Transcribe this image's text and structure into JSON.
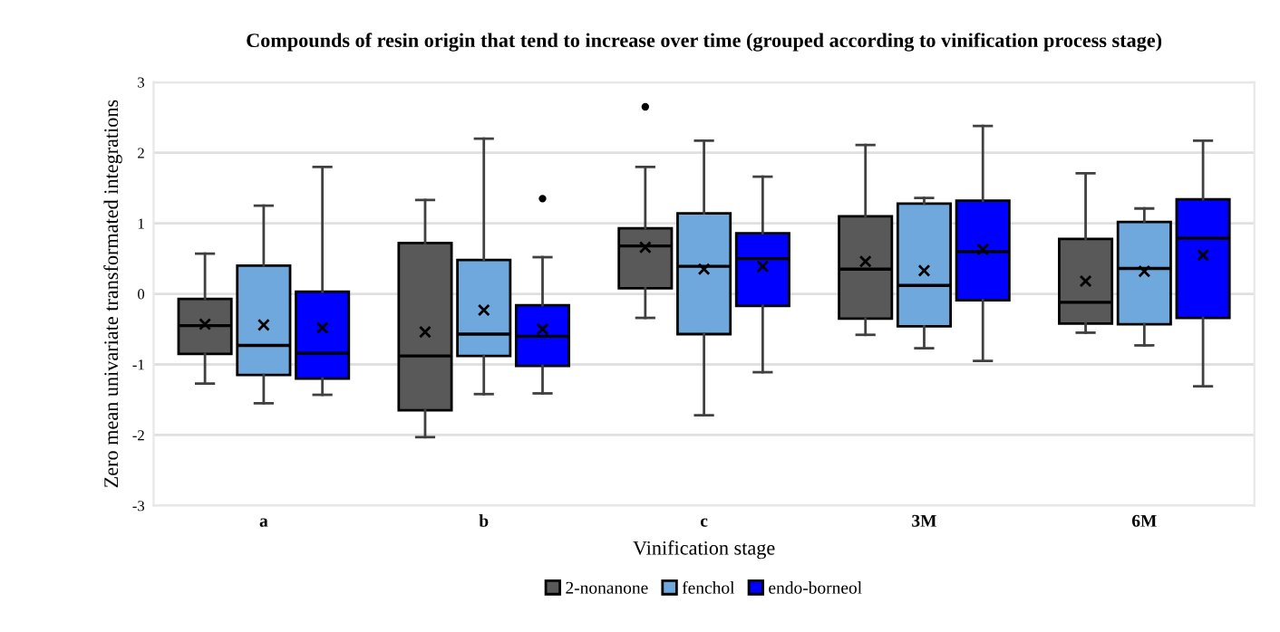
{
  "chart_data": {
    "type": "box",
    "title": "Compounds of resin origin that tend to increase over time (grouped according to vinification process stage)",
    "xlabel": "Vinification stage",
    "ylabel": "Zero mean univariate transformated integrations",
    "categories": [
      "a",
      "b",
      "c",
      "3M",
      "6M"
    ],
    "series": [
      {
        "name": "2-nonanone",
        "color": "#595959",
        "boxes": [
          {
            "low": -1.27,
            "q1": -0.85,
            "median": -0.45,
            "q3": -0.07,
            "high": 0.57,
            "mean": -0.43
          },
          {
            "low": -2.03,
            "q1": -1.65,
            "median": -0.88,
            "q3": 0.72,
            "high": 1.33,
            "mean": -0.54
          },
          {
            "low": -0.34,
            "q1": 0.08,
            "median": 0.68,
            "q3": 0.93,
            "high": 1.8,
            "mean": 0.66,
            "outliers": [
              2.65
            ]
          },
          {
            "low": -0.58,
            "q1": -0.35,
            "median": 0.35,
            "q3": 1.1,
            "high": 2.11,
            "mean": 0.46
          },
          {
            "low": -0.55,
            "q1": -0.42,
            "median": -0.12,
            "q3": 0.78,
            "high": 1.71,
            "mean": 0.18
          }
        ]
      },
      {
        "name": "fenchol",
        "color": "#6fa8dc",
        "boxes": [
          {
            "low": -1.55,
            "q1": -1.15,
            "median": -0.73,
            "q3": 0.4,
            "high": 1.25,
            "mean": -0.44
          },
          {
            "low": -1.42,
            "q1": -0.88,
            "median": -0.57,
            "q3": 0.48,
            "high": 2.2,
            "mean": -0.23
          },
          {
            "low": -1.72,
            "q1": -0.57,
            "median": 0.39,
            "q3": 1.14,
            "high": 2.17,
            "mean": 0.35
          },
          {
            "low": -0.77,
            "q1": -0.46,
            "median": 0.12,
            "q3": 1.28,
            "high": 1.36,
            "mean": 0.33
          },
          {
            "low": -0.73,
            "q1": -0.43,
            "median": 0.36,
            "q3": 1.02,
            "high": 1.21,
            "mean": 0.32
          }
        ]
      },
      {
        "name": "endo-borneol",
        "color": "#0000ff",
        "boxes": [
          {
            "low": -1.43,
            "q1": -1.2,
            "median": -0.84,
            "q3": 0.03,
            "high": 1.8,
            "mean": -0.48
          },
          {
            "low": -1.41,
            "q1": -1.02,
            "median": -0.6,
            "q3": -0.16,
            "high": 0.52,
            "mean": -0.5,
            "outliers": [
              1.35
            ]
          },
          {
            "low": -1.11,
            "q1": -0.17,
            "median": 0.5,
            "q3": 0.86,
            "high": 1.66,
            "mean": 0.39
          },
          {
            "low": -0.95,
            "q1": -0.09,
            "median": 0.6,
            "q3": 1.32,
            "high": 2.38,
            "mean": 0.63
          },
          {
            "low": -1.31,
            "q1": -0.34,
            "median": 0.79,
            "q3": 1.34,
            "high": 2.17,
            "mean": 0.55
          }
        ]
      }
    ],
    "ylim": [
      -3,
      3
    ],
    "yticks": [
      -3,
      -2,
      -1,
      0,
      1,
      2,
      3
    ],
    "grid": "y",
    "legend": "bottom"
  }
}
